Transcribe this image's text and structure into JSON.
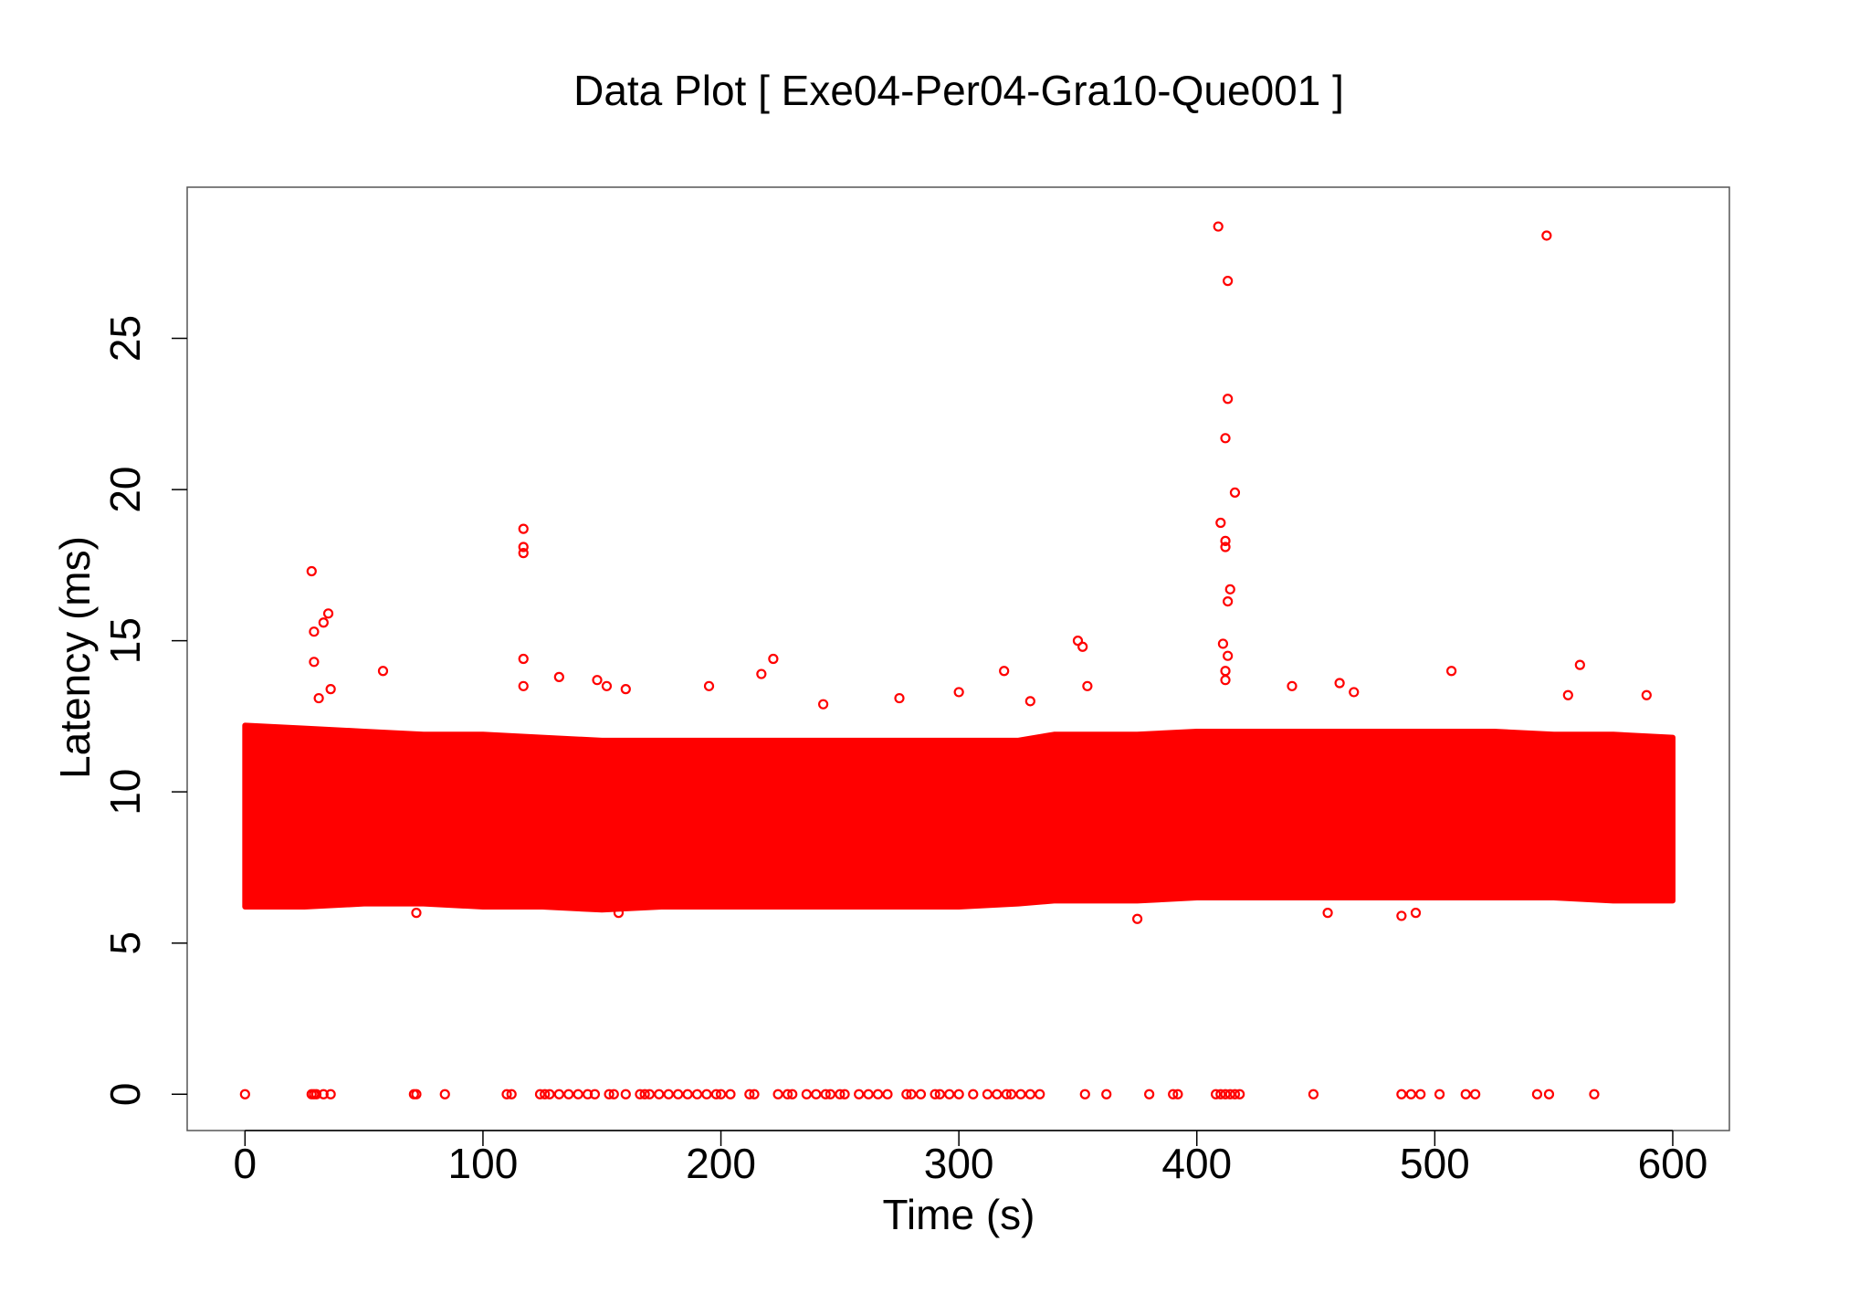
{
  "chart_data": {
    "type": "scatter",
    "title": "Data Plot [ Exe04-Per04-Gra10-Que001 ]",
    "x_label": "Time (s)",
    "y_label": "Latency (ms)",
    "color": "#ff0000",
    "xlim": [
      -24.3,
      623.8
    ],
    "ylim": [
      -1.2,
      30
    ],
    "xticks": [
      0,
      100,
      200,
      300,
      400,
      500,
      600
    ],
    "yticks": [
      0,
      5,
      10,
      15,
      20,
      25
    ],
    "band": {
      "x": [
        0,
        25,
        50,
        75,
        100,
        125,
        150,
        175,
        200,
        225,
        250,
        275,
        300,
        325,
        340,
        375,
        400,
        425,
        450,
        475,
        500,
        525,
        550,
        575,
        600
      ],
      "high": [
        12.2,
        12.1,
        12,
        11.9,
        11.9,
        11.8,
        11.7,
        11.7,
        11.7,
        11.7,
        11.7,
        11.7,
        11.7,
        11.7,
        11.9,
        11.9,
        12,
        12,
        12,
        12,
        12,
        12,
        11.9,
        11.9,
        11.8
      ],
      "low": [
        6.2,
        6.2,
        6.3,
        6.3,
        6.2,
        6.2,
        6.1,
        6.2,
        6.2,
        6.2,
        6.2,
        6.2,
        6.2,
        6.3,
        6.4,
        6.4,
        6.5,
        6.5,
        6.5,
        6.5,
        6.5,
        6.5,
        6.5,
        6.4,
        6.4
      ]
    },
    "x": [
      28,
      29,
      29,
      33,
      35,
      31,
      36,
      58,
      117,
      117,
      117,
      117,
      117,
      132,
      148,
      152,
      160,
      195,
      217,
      222,
      243,
      275,
      300,
      319,
      330,
      350,
      352,
      354,
      409,
      413,
      413,
      412,
      416,
      410,
      412,
      412,
      414,
      413,
      411,
      413,
      412,
      412,
      440,
      460,
      466,
      507,
      547,
      556,
      561,
      589,
      375,
      157,
      72,
      486,
      492,
      455,
      0,
      28,
      29,
      30,
      33,
      36,
      71,
      72,
      84,
      110,
      112,
      124,
      126,
      128,
      132,
      136,
      140,
      144,
      147,
      153,
      155,
      160,
      166,
      168,
      170,
      174,
      178,
      182,
      186,
      190,
      194,
      198,
      200,
      204,
      212,
      214,
      224,
      228,
      230,
      236,
      240,
      244,
      246,
      250,
      252,
      258,
      262,
      266,
      270,
      278,
      280,
      284,
      290,
      292,
      296,
      300,
      306,
      312,
      316,
      320,
      322,
      326,
      330,
      334,
      353,
      362,
      380,
      390,
      392,
      408,
      410,
      412,
      414,
      416,
      418,
      449,
      486,
      490,
      494,
      502,
      513,
      517,
      543,
      548,
      567
    ],
    "values": [
      17.3,
      15.3,
      14.3,
      15.6,
      15.9,
      13.1,
      13.4,
      14,
      18.7,
      18.1,
      17.9,
      14.4,
      13.5,
      13.8,
      13.7,
      13.5,
      13.4,
      13.5,
      13.9,
      14.4,
      12.9,
      13.1,
      13.3,
      14,
      13,
      15,
      14.8,
      13.5,
      28.7,
      26.9,
      23,
      21.7,
      19.9,
      18.9,
      18.3,
      18.1,
      16.7,
      16.3,
      14.9,
      14.5,
      14,
      13.7,
      13.5,
      13.6,
      13.3,
      14,
      28.4,
      13.2,
      14.2,
      13.2,
      5.8,
      6,
      6,
      5.9,
      6,
      6,
      0,
      0,
      0,
      0,
      0,
      0,
      0,
      0,
      0,
      0,
      0,
      0,
      0,
      0,
      0,
      0,
      0,
      0,
      0,
      0,
      0,
      0,
      0,
      0,
      0,
      0,
      0,
      0,
      0,
      0,
      0,
      0,
      0,
      0,
      0,
      0,
      0,
      0,
      0,
      0,
      0,
      0,
      0,
      0,
      0,
      0,
      0,
      0,
      0,
      0,
      0,
      0,
      0,
      0,
      0,
      0,
      0,
      0,
      0,
      0,
      0,
      0,
      0,
      0,
      0,
      0,
      0,
      0,
      0,
      0,
      0,
      0,
      0,
      0,
      0,
      0,
      0,
      0,
      0,
      0,
      0,
      0,
      0,
      0,
      0
    ]
  }
}
